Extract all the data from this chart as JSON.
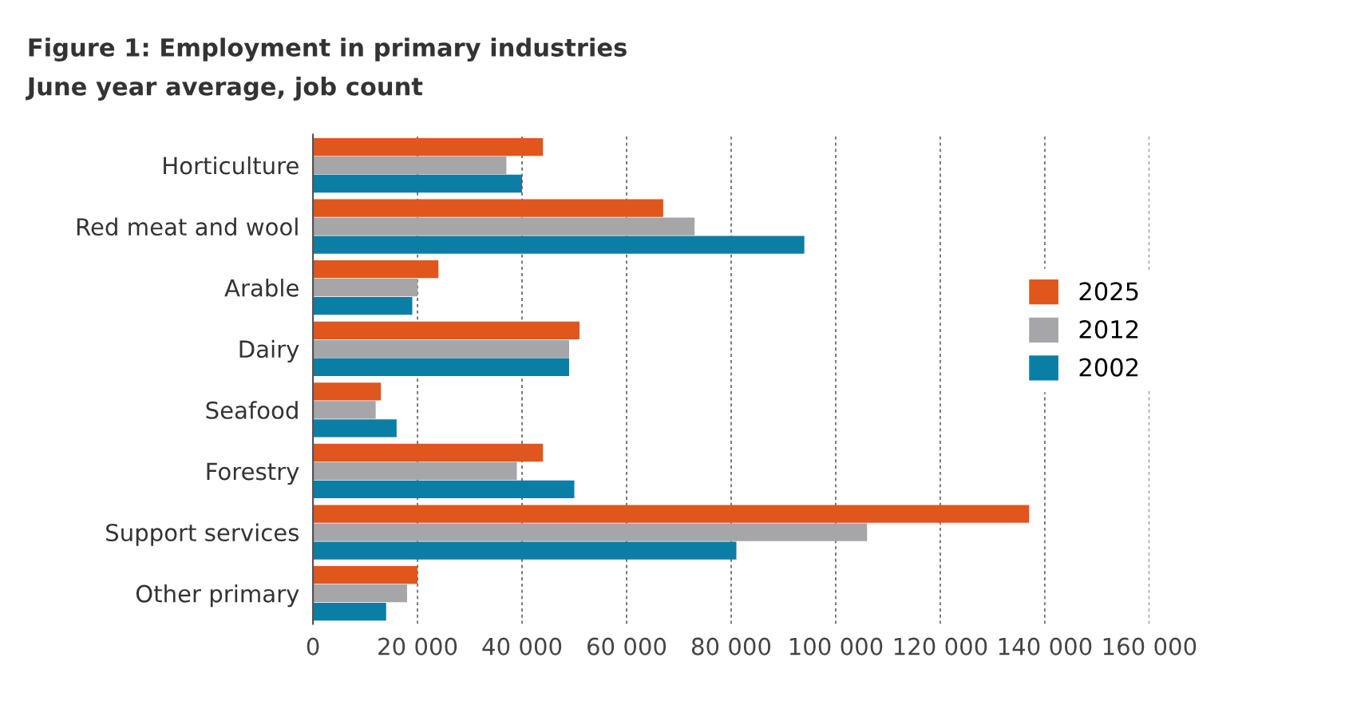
{
  "chart_data": {
    "type": "bar",
    "orientation": "horizontal",
    "title": "Figure 1: Employment in primary industries",
    "subtitle": "June year average, job count",
    "categories": [
      "Horticulture",
      "Red meat and wool",
      "Arable",
      "Dairy",
      "Seafood",
      "Forestry",
      "Support services",
      "Other primary"
    ],
    "series": [
      {
        "name": "2025",
        "color": "#e0561d",
        "values": [
          44000,
          67000,
          24000,
          51000,
          13000,
          44000,
          137000,
          20000
        ]
      },
      {
        "name": "2012",
        "color": "#a6a6a8",
        "values": [
          37000,
          73000,
          20000,
          49000,
          12000,
          39000,
          106000,
          18000
        ]
      },
      {
        "name": "2002",
        "color": "#0b7ea6",
        "values": [
          40000,
          94000,
          19000,
          49000,
          16000,
          50000,
          81000,
          14000
        ]
      }
    ],
    "xlim": [
      0,
      160000
    ],
    "xticks": [
      0,
      {
        "value": 20000,
        "label": "20 000"
      },
      {
        "value": 40000,
        "label": "40 000"
      },
      {
        "value": 60000,
        "label": "60 000"
      },
      {
        "value": 80000,
        "label": "80 000"
      },
      {
        "value": 100000,
        "label": "100 000"
      },
      {
        "value": 120000,
        "label": "120 000"
      },
      {
        "value": 140000,
        "label": "140 000"
      },
      {
        "value": 160000,
        "label": "160 000"
      }
    ],
    "grid": "x",
    "legend": "right"
  }
}
